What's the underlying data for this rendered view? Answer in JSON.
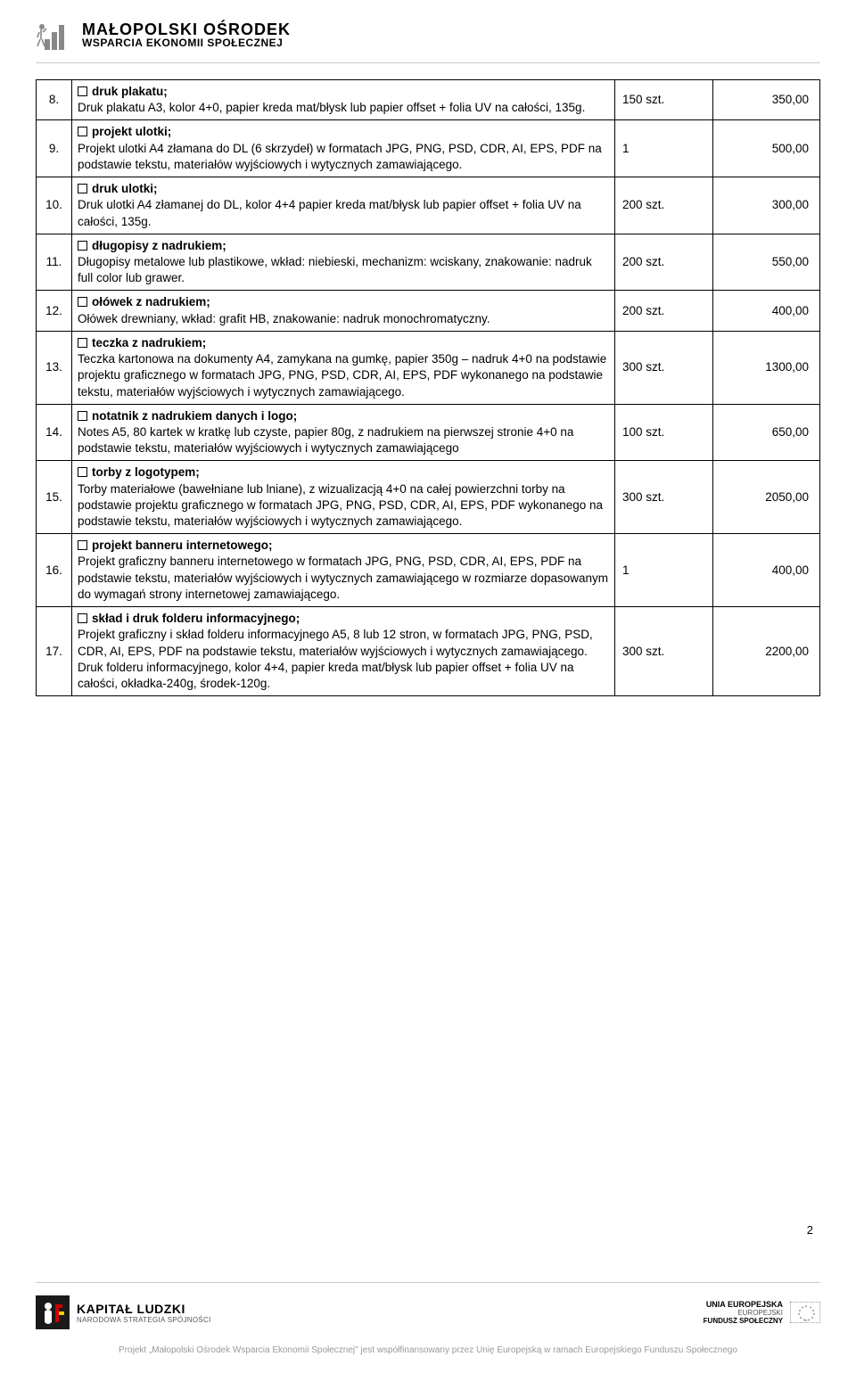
{
  "header": {
    "line1": "MAŁOPOLSKI OŚRODEK",
    "line2": "WSPARCIA EKONOMII SPOŁECZNEJ"
  },
  "rows": [
    {
      "num": "8.",
      "title": "druk plakatu;",
      "desc": "Druk plakatu A3, kolor 4+0, papier kreda mat/błysk lub papier offset + folia UV na całości, 135g.",
      "qty": "150 szt.",
      "price": "350,00"
    },
    {
      "num": "9.",
      "title": "projekt ulotki;",
      "desc": "Projekt ulotki A4 złamana do DL (6 skrzydeł) w formatach JPG, PNG, PSD, CDR, AI, EPS, PDF na podstawie tekstu, materiałów wyjściowych i wytycznych zamawiającego.",
      "qty": "1",
      "price": "500,00"
    },
    {
      "num": "10.",
      "title": "druk ulotki;",
      "desc": "Druk ulotki A4 złamanej do DL, kolor 4+4 papier kreda mat/błysk lub papier offset + folia UV na całości, 135g.",
      "qty": "200 szt.",
      "price": "300,00"
    },
    {
      "num": "11.",
      "title": "długopisy z nadrukiem;",
      "desc": "Długopisy metalowe lub plastikowe, wkład: niebieski, mechanizm: wciskany, znakowanie: nadruk full color lub grawer.",
      "qty": "200 szt.",
      "price": "550,00"
    },
    {
      "num": "12.",
      "title": "ołówek z nadrukiem;",
      "desc": "Ołówek drewniany, wkład: grafit HB, znakowanie: nadruk monochromatyczny.",
      "qty": "200 szt.",
      "price": "400,00"
    },
    {
      "num": "13.",
      "title": "teczka z nadrukiem;",
      "desc": "Teczka kartonowa na dokumenty A4, zamykana na gumkę, papier 350g – nadruk 4+0 na podstawie projektu graficznego w formatach JPG, PNG, PSD, CDR, AI, EPS, PDF wykonanego na podstawie tekstu, materiałów wyjściowych i wytycznych zamawiającego.",
      "qty": "300 szt.",
      "price": "1300,00"
    },
    {
      "num": "14.",
      "title": "notatnik z nadrukiem danych i logo;",
      "desc": "Notes A5, 80 kartek w kratkę lub czyste, papier 80g, z nadrukiem na pierwszej stronie 4+0 na podstawie tekstu, materiałów wyjściowych i wytycznych zamawiającego",
      "qty": "100 szt.",
      "price": "650,00"
    },
    {
      "num": "15.",
      "title": "torby z logotypem;",
      "desc": "Torby materiałowe (bawełniane lub lniane), z wizualizacją 4+0 na całej powierzchni torby na podstawie projektu graficznego w formatach JPG, PNG, PSD, CDR, AI, EPS, PDF wykonanego na podstawie tekstu, materiałów wyjściowych i wytycznych zamawiającego.",
      "qty": "300 szt.",
      "price": "2050,00"
    },
    {
      "num": "16.",
      "title": "projekt banneru internetowego;",
      "desc": "Projekt graficzny banneru internetowego w formatach JPG, PNG, PSD, CDR, AI, EPS, PDF na podstawie tekstu, materiałów wyjściowych i wytycznych zamawiającego w rozmiarze dopasowanym do wymagań strony internetowej zamawiającego.",
      "qty": "1",
      "price": "400,00"
    },
    {
      "num": "17.",
      "title": "skład i druk folderu informacyjnego;",
      "desc": "Projekt graficzny i skład folderu informacyjnego A5, 8 lub 12 stron, w formatach JPG, PNG, PSD, CDR, AI, EPS, PDF na podstawie tekstu, materiałów wyjściowych i wytycznych zamawiającego.\nDruk folderu informacyjnego, kolor 4+4, papier kreda mat/błysk lub papier offset + folia UV na całości, okładka-240g, środek-120g.",
      "qty": "300 szt.",
      "price": "2200,00"
    }
  ],
  "pageNumber": "2",
  "footer": {
    "kl_line1": "KAPITAŁ LUDZKI",
    "kl_line2": "NARODOWA STRATEGIA SPÓJNOŚCI",
    "eu_line1": "UNIA EUROPEJSKA",
    "eu_line2": "EUROPEJSKI",
    "eu_line3": "FUNDUSZ SPOŁECZNY",
    "note": "Projekt „Małopolski Ośrodek Wsparcia Ekonomii Społecznej\" jest współfinansowany przez Unię Europejską w ramach Europejskiego Funduszu Społecznego"
  }
}
